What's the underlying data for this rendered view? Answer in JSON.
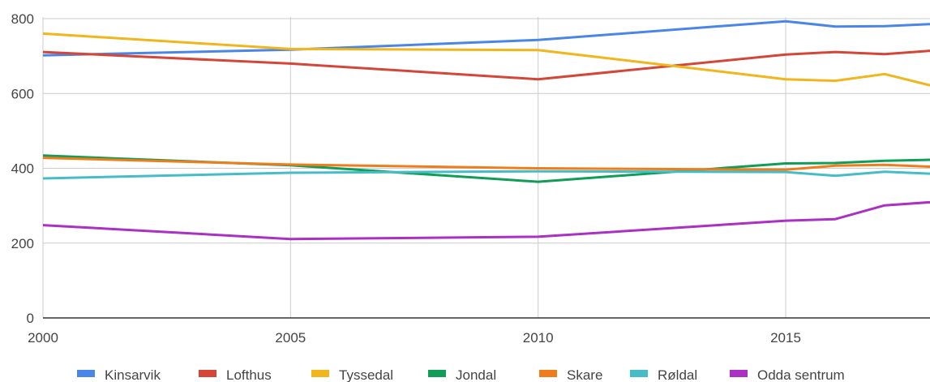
{
  "chart_data": {
    "type": "line",
    "title": "",
    "xlabel": "",
    "ylabel": "",
    "xlim": [
      2000,
      2018
    ],
    "ylim": [
      0,
      800
    ],
    "x_ticks": [
      2000,
      2005,
      2010,
      2015
    ],
    "y_ticks": [
      0,
      200,
      400,
      600,
      800
    ],
    "grid": true,
    "legend_position": "bottom",
    "series": [
      {
        "name": "Kinsarvik",
        "color": "#4a86e8",
        "points": [
          [
            2000,
            702
          ],
          [
            2005,
            717
          ],
          [
            2010,
            743
          ],
          [
            2015,
            793
          ],
          [
            2016,
            779
          ],
          [
            2017,
            780
          ],
          [
            2018,
            786
          ]
        ]
      },
      {
        "name": "Lofthus",
        "color": "#d44638",
        "points": [
          [
            2000,
            711
          ],
          [
            2005,
            680
          ],
          [
            2010,
            638
          ],
          [
            2015,
            704
          ],
          [
            2016,
            711
          ],
          [
            2017,
            705
          ],
          [
            2018,
            715
          ]
        ]
      },
      {
        "name": "Tyssedal",
        "color": "#f1b61c",
        "points": [
          [
            2000,
            760
          ],
          [
            2005,
            719
          ],
          [
            2010,
            716
          ],
          [
            2015,
            638
          ],
          [
            2016,
            634
          ],
          [
            2017,
            652
          ],
          [
            2018,
            619
          ]
        ]
      },
      {
        "name": "Jondal",
        "color": "#0f9d58",
        "points": [
          [
            2000,
            434
          ],
          [
            2005,
            408
          ],
          [
            2010,
            364
          ],
          [
            2015,
            413
          ],
          [
            2016,
            414
          ],
          [
            2017,
            420
          ],
          [
            2018,
            423
          ]
        ]
      },
      {
        "name": "Skare",
        "color": "#f07d1c",
        "points": [
          [
            2000,
            428
          ],
          [
            2005,
            410
          ],
          [
            2010,
            400
          ],
          [
            2015,
            396
          ],
          [
            2016,
            407
          ],
          [
            2017,
            409
          ],
          [
            2018,
            404
          ]
        ]
      },
      {
        "name": "Røldal",
        "color": "#46bdc6",
        "points": [
          [
            2000,
            373
          ],
          [
            2005,
            388
          ],
          [
            2010,
            392
          ],
          [
            2015,
            390
          ],
          [
            2016,
            380
          ],
          [
            2017,
            391
          ],
          [
            2018,
            385
          ]
        ]
      },
      {
        "name": "Odda sentrum",
        "color": "#ab30c4",
        "points": [
          [
            2000,
            248
          ],
          [
            2005,
            211
          ],
          [
            2010,
            217
          ],
          [
            2015,
            260
          ],
          [
            2016,
            264
          ],
          [
            2017,
            301
          ],
          [
            2018,
            310
          ]
        ]
      }
    ]
  }
}
